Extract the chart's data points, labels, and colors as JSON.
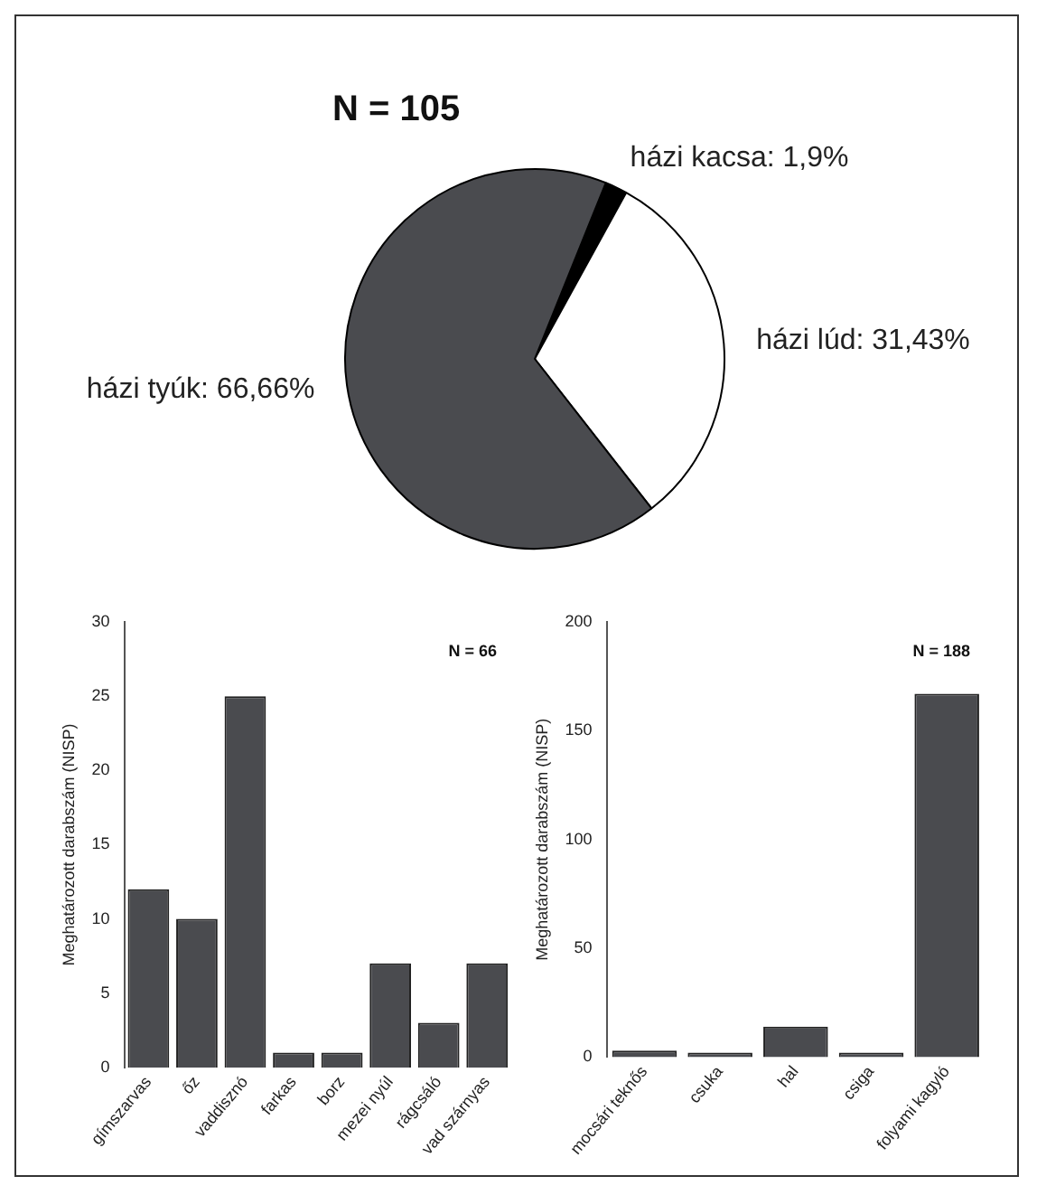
{
  "chart_data": [
    {
      "type": "pie",
      "title": "N = 105",
      "categories": [
        "házi kacsa",
        "házi lúd",
        "házi tyúk"
      ],
      "values": [
        1.9,
        31.43,
        66.66
      ],
      "value_labels": [
        "1,9%",
        "31,43%",
        "66,66%"
      ],
      "colors": [
        "#000000",
        "#ffffff",
        "#4a4b4f"
      ]
    },
    {
      "type": "bar",
      "ylabel": "Meghatározott darabszám (NISP)",
      "annotations": [
        "N = 66"
      ],
      "categories": [
        "gímszarvas",
        "őz",
        "vaddisznó",
        "farkas",
        "borz",
        "mezei nyúl",
        "rágcsáló",
        "vad szárnyas"
      ],
      "values": [
        12,
        10,
        25,
        1,
        1,
        7,
        3,
        7
      ],
      "color": "#4a4b4f",
      "ylim": [
        0,
        30
      ],
      "yticks": [
        0,
        5,
        10,
        15,
        20,
        25,
        30
      ]
    },
    {
      "type": "bar",
      "ylabel": "Meghatározott darabszám (NISP)",
      "annotations": [
        "N = 188"
      ],
      "categories": [
        "mocsári teknős",
        "csuka",
        "hal",
        "csiga",
        "folyami kagyló"
      ],
      "values": [
        3,
        2,
        14,
        2,
        167
      ],
      "color": "#4a4b4f",
      "ylim": [
        0,
        200
      ],
      "yticks": [
        0,
        50,
        100,
        150,
        200
      ]
    }
  ]
}
